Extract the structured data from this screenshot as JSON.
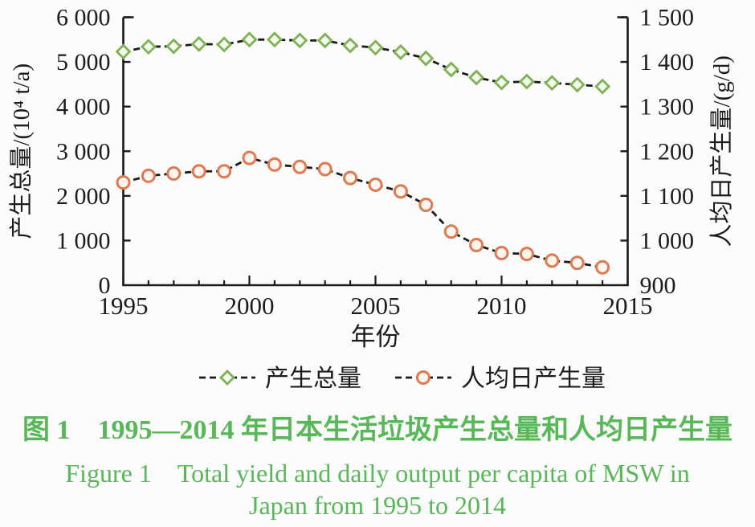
{
  "chart_data": {
    "type": "line",
    "title": "",
    "xlabel": "年份",
    "ylabel_left": "产生总量/(10⁴ t/a)",
    "ylabel_right": "人均日产生量/(g/d)",
    "xlim": [
      1995,
      2015
    ],
    "ylim_left": [
      0,
      6000
    ],
    "ylim_right": [
      900,
      1500
    ],
    "xticks_major": [
      1995,
      2000,
      2005,
      2010,
      2015
    ],
    "xtick_labels": [
      "1995",
      "2000",
      "2005",
      "2010",
      "2015"
    ],
    "yticks_left": [
      0,
      1000,
      2000,
      3000,
      4000,
      5000,
      6000
    ],
    "ytick_labels_left": [
      "0",
      "1 000",
      "2 000",
      "3 000",
      "4 000",
      "5 000",
      "6 000"
    ],
    "yticks_right": [
      900,
      1000,
      1100,
      1200,
      1300,
      1400,
      1500
    ],
    "ytick_labels_right": [
      "900",
      "1 000",
      "1 100",
      "1 200",
      "1 300",
      "1 400",
      "1 500"
    ],
    "x": [
      1995,
      1996,
      1997,
      1998,
      1999,
      2000,
      2001,
      2002,
      2003,
      2004,
      2005,
      2006,
      2007,
      2008,
      2009,
      2010,
      2011,
      2012,
      2013,
      2014
    ],
    "series": [
      {
        "name": "产生总量",
        "axis": "left",
        "marker": "diamond",
        "marker_color": "#7eb254",
        "marker_fill": "#f4f9ee",
        "line_color": "#1c1c1c",
        "line_style": "dashed",
        "values": [
          5230,
          5340,
          5350,
          5400,
          5390,
          5500,
          5500,
          5480,
          5480,
          5370,
          5320,
          5220,
          5080,
          4830,
          4650,
          4540,
          4560,
          4530,
          4490,
          4450
        ]
      },
      {
        "name": "人均日产生量",
        "axis": "right",
        "marker": "circle",
        "marker_color": "#df7a50",
        "marker_fill": "#fdf5f0",
        "line_color": "#1c1c1c",
        "line_style": "dashed",
        "values": [
          1130,
          1145,
          1150,
          1155,
          1155,
          1185,
          1170,
          1165,
          1160,
          1140,
          1125,
          1110,
          1080,
          1020,
          990,
          972,
          970,
          955,
          950,
          940
        ]
      }
    ],
    "grid": false,
    "legend_position": "bottom-center"
  },
  "legend": {
    "items": [
      {
        "label": "产生总量",
        "marker": "diamond"
      },
      {
        "label": "人均日产生量",
        "marker": "circle"
      }
    ]
  },
  "caption": {
    "zh": "图 1　1995—2014 年日本生活垃圾产生总量和人均日产生量",
    "en_line1": "Figure 1　Total yield and daily output per capita  of MSW in",
    "en_line2": "Japan from 1995 to 2014",
    "color": "#57b857"
  }
}
